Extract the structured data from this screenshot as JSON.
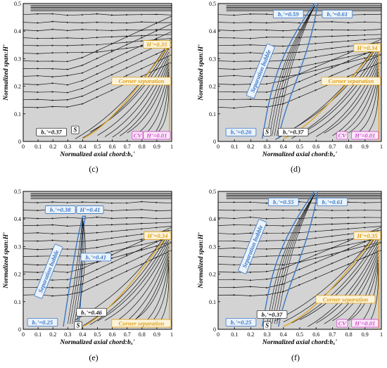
{
  "figure": {
    "panels": [
      {
        "id": "c",
        "caption": "(c)",
        "xlabel": "Normalized axial chord:bₓ'",
        "ylabel": "Normalized span:H'",
        "xticks": [
          "0",
          "0.1",
          "0.2",
          "0.3",
          "0.4",
          "0.5",
          "0.6",
          "0.7",
          "0.8",
          "0.9",
          "1"
        ],
        "yticks": [
          "0",
          "0.1",
          "0.2",
          "0.3",
          "0.4",
          "0.5"
        ],
        "annotations": [
          {
            "text": "H'=0.35",
            "kind": "orange"
          },
          {
            "text": "Corner separation",
            "kind": "orange"
          },
          {
            "text": "bₓ'=0.37",
            "kind": "black"
          },
          {
            "text": "S",
            "kind": "black"
          },
          {
            "text": "CV",
            "kind": "pink"
          },
          {
            "text": "H'=0.01",
            "kind": "pink"
          }
        ]
      },
      {
        "id": "d",
        "caption": "(d)",
        "xlabel": "Normalized axial chord:bₓ'",
        "ylabel": "Normalized span:H'",
        "xticks": [
          "0",
          "0.1",
          "0.2",
          "0.3",
          "0.4",
          "0.5",
          "0.6",
          "0.7",
          "0.8",
          "0.9",
          "1"
        ],
        "yticks": [
          "0",
          "0.1",
          "0.2",
          "0.3",
          "0.4",
          "0.5"
        ],
        "annotations": [
          {
            "text": "bₓ'=0.59",
            "kind": "blue"
          },
          {
            "text": "bₓ'=0.61",
            "kind": "blue"
          },
          {
            "text": "H'=0.34",
            "kind": "orange"
          },
          {
            "text": "Separation bubble",
            "kind": "blue"
          },
          {
            "text": "Corner separation",
            "kind": "orange"
          },
          {
            "text": "bₓ'=0.26",
            "kind": "blue"
          },
          {
            "text": "S",
            "kind": "black"
          },
          {
            "text": "bₓ'=0.37",
            "kind": "black"
          },
          {
            "text": "CV",
            "kind": "pink"
          },
          {
            "text": "H'=0.01",
            "kind": "pink"
          }
        ]
      },
      {
        "id": "e",
        "caption": "(e)",
        "xlabel": "Normalized axial chord:bₓ'",
        "ylabel": "Normalized span:H'",
        "xticks": [
          "0",
          "0.1",
          "0.2",
          "0.3",
          "0.4",
          "0.5",
          "0.6",
          "0.7",
          "0.8",
          "0.9",
          "1"
        ],
        "yticks": [
          "0",
          "0.1",
          "0.2",
          "0.3",
          "0.4",
          "0.5"
        ],
        "annotations": [
          {
            "text": "bₓ'=0.38",
            "kind": "blue"
          },
          {
            "text": "H'=0.41",
            "kind": "blue"
          },
          {
            "text": "H'=0.34",
            "kind": "orange"
          },
          {
            "text": "bₓ'=0.41",
            "kind": "blue"
          },
          {
            "text": "Separation bubble",
            "kind": "blue"
          },
          {
            "text": "bₓ'=0.46",
            "kind": "black"
          },
          {
            "text": "bₓ'=0.25",
            "kind": "blue"
          },
          {
            "text": "S",
            "kind": "black"
          },
          {
            "text": "Corner separation",
            "kind": "orange"
          }
        ]
      },
      {
        "id": "f",
        "caption": "(f)",
        "xlabel": "Normalized axial chord:bₓ'",
        "ylabel": "Normalized span:H'",
        "xticks": [
          "0",
          "0.1",
          "0.2",
          "0.3",
          "0.4",
          "0.5",
          "0.6",
          "0.7",
          "0.8",
          "0.9",
          "1"
        ],
        "yticks": [
          "0",
          "0.1",
          "0.2",
          "0.3",
          "0.4",
          "0.5"
        ],
        "annotations": [
          {
            "text": "bₓ'=0.55",
            "kind": "blue"
          },
          {
            "text": "bₓ'=0.61",
            "kind": "blue"
          },
          {
            "text": "H'=0.35",
            "kind": "orange"
          },
          {
            "text": "Separation bubble",
            "kind": "blue"
          },
          {
            "text": "Corner separation",
            "kind": "orange"
          },
          {
            "text": "bₓ'=0.37",
            "kind": "black"
          },
          {
            "text": "bₓ'=0.25",
            "kind": "blue"
          },
          {
            "text": "S",
            "kind": "black"
          },
          {
            "text": "CV",
            "kind": "pink"
          },
          {
            "text": "H'=0.01",
            "kind": "pink"
          }
        ]
      }
    ],
    "colors": {
      "background": "#d3d3d3",
      "streamline": "#111111",
      "orange": "#e0a21b",
      "blue": "#3a78c4",
      "pink": "#d14fc9"
    }
  }
}
